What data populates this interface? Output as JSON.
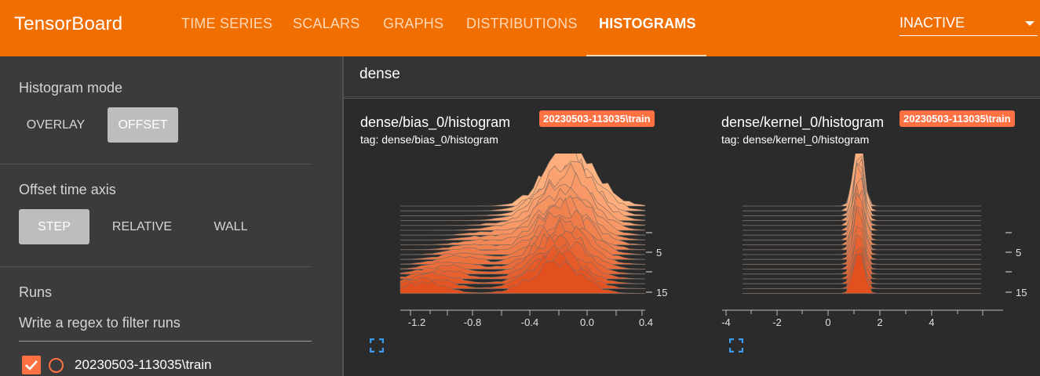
{
  "header": {
    "brand": "TensorBoard",
    "tabs": [
      {
        "label": "TIME SERIES",
        "active": false
      },
      {
        "label": "SCALARS",
        "active": false
      },
      {
        "label": "GRAPHS",
        "active": false
      },
      {
        "label": "DISTRIBUTIONS",
        "active": false
      },
      {
        "label": "HISTOGRAMS",
        "active": true
      }
    ],
    "dropdown_value": "INACTIVE",
    "accent_color": "#f06f00"
  },
  "sidebar": {
    "histogram_mode": {
      "title": "Histogram mode",
      "options": [
        "OVERLAY",
        "OFFSET"
      ],
      "selected": "OFFSET"
    },
    "offset_time_axis": {
      "title": "Offset time axis",
      "options": [
        "STEP",
        "RELATIVE",
        "WALL"
      ],
      "selected": "STEP"
    },
    "runs": {
      "title": "Runs",
      "filter_placeholder": "Write a regex to filter runs",
      "items": [
        {
          "label": "20230503-113035\\train",
          "checked": true,
          "color": "#ff7043"
        }
      ]
    }
  },
  "main": {
    "group_title": "dense",
    "cards": [
      {
        "title": "dense/bias_0/histogram",
        "tag": "tag: dense/bias_0/histogram",
        "run": "20230503-113035\\train",
        "x_ticks": [
          "-1.2",
          "-0.8",
          "-0.4",
          "0.0",
          "0.4"
        ],
        "y_ticks": [
          "5",
          "15"
        ]
      },
      {
        "title": "dense/kernel_0/histogram",
        "tag": "tag: dense/kernel_0/histogram",
        "run": "20230503-113035\\train",
        "x_ticks": [
          "-4",
          "-2",
          "0",
          "2",
          "4"
        ],
        "y_ticks": [
          "5",
          "15"
        ]
      }
    ]
  }
}
